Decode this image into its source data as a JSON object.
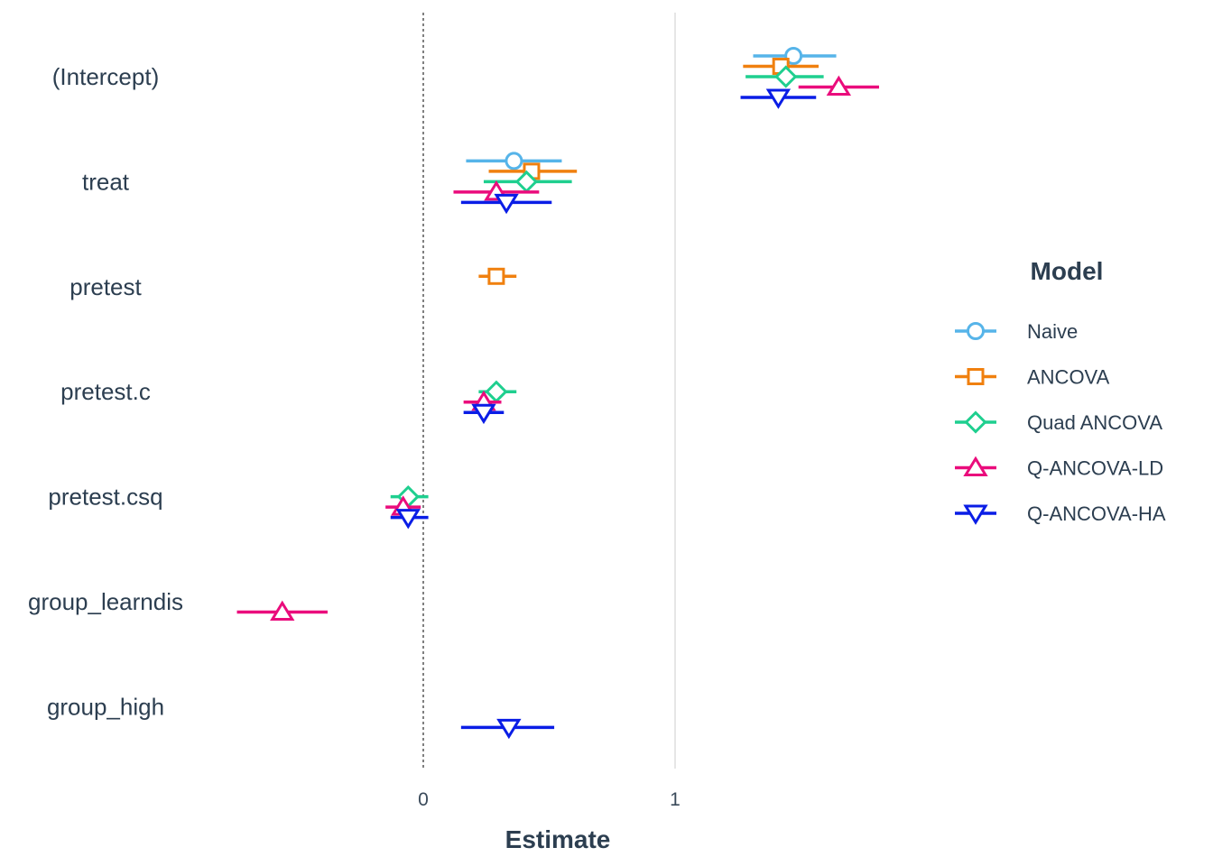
{
  "chart_data": {
    "type": "coefficient-plot",
    "xlabel": "Estimate",
    "legend_title": "Model",
    "legend_position": "right",
    "x_ticks": [
      0,
      1
    ],
    "x_tick_labels": [
      "0",
      "1"
    ],
    "xlim": [
      -0.75,
      2.2
    ],
    "terms": [
      "(Intercept)",
      "treat",
      "pretest",
      "pretest.c",
      "pretest.csq",
      "group_learndis",
      "group_high"
    ],
    "reference_lines": [
      {
        "x": 0,
        "style": "dashed",
        "color": "#000000"
      },
      {
        "x": 1,
        "style": "solid",
        "color": "#dddddd"
      }
    ],
    "series": [
      {
        "name": "Naive",
        "color": "#56b4e9",
        "shape": "circle",
        "points": [
          {
            "term": "(Intercept)",
            "estimate": 1.47,
            "low": 1.31,
            "high": 1.64
          },
          {
            "term": "treat",
            "estimate": 0.36,
            "low": 0.17,
            "high": 0.55
          }
        ]
      },
      {
        "name": "ANCOVA",
        "color": "#f0800f",
        "shape": "square",
        "points": [
          {
            "term": "(Intercept)",
            "estimate": 1.42,
            "low": 1.27,
            "high": 1.57
          },
          {
            "term": "treat",
            "estimate": 0.43,
            "low": 0.26,
            "high": 0.61
          },
          {
            "term": "pretest",
            "estimate": 0.29,
            "low": 0.22,
            "high": 0.37
          }
        ]
      },
      {
        "name": "Quad ANCOVA",
        "color": "#1fcf8f",
        "shape": "diamond",
        "points": [
          {
            "term": "(Intercept)",
            "estimate": 1.44,
            "low": 1.28,
            "high": 1.59
          },
          {
            "term": "treat",
            "estimate": 0.41,
            "low": 0.24,
            "high": 0.59
          },
          {
            "term": "pretest.c",
            "estimate": 0.29,
            "low": 0.22,
            "high": 0.37
          },
          {
            "term": "pretest.csq",
            "estimate": -0.06,
            "low": -0.13,
            "high": 0.02
          }
        ]
      },
      {
        "name": "Q-ANCOVA-LD",
        "color": "#ea0c7c",
        "shape": "triangle-up",
        "points": [
          {
            "term": "(Intercept)",
            "estimate": 1.65,
            "low": 1.49,
            "high": 1.81
          },
          {
            "term": "treat",
            "estimate": 0.29,
            "low": 0.12,
            "high": 0.46
          },
          {
            "term": "pretest.c",
            "estimate": 0.24,
            "low": 0.16,
            "high": 0.31
          },
          {
            "term": "pretest.csq",
            "estimate": -0.08,
            "low": -0.15,
            "high": -0.01
          },
          {
            "term": "group_learndis",
            "estimate": -0.56,
            "low": -0.74,
            "high": -0.38
          }
        ]
      },
      {
        "name": "Q-ANCOVA-HA",
        "color": "#0a1de6",
        "shape": "triangle-down",
        "points": [
          {
            "term": "(Intercept)",
            "estimate": 1.41,
            "low": 1.26,
            "high": 1.56
          },
          {
            "term": "treat",
            "estimate": 0.33,
            "low": 0.15,
            "high": 0.51
          },
          {
            "term": "pretest.c",
            "estimate": 0.24,
            "low": 0.16,
            "high": 0.32
          },
          {
            "term": "pretest.csq",
            "estimate": -0.06,
            "low": -0.13,
            "high": 0.02
          },
          {
            "term": "group_high",
            "estimate": 0.34,
            "low": 0.15,
            "high": 0.52
          }
        ]
      }
    ]
  }
}
